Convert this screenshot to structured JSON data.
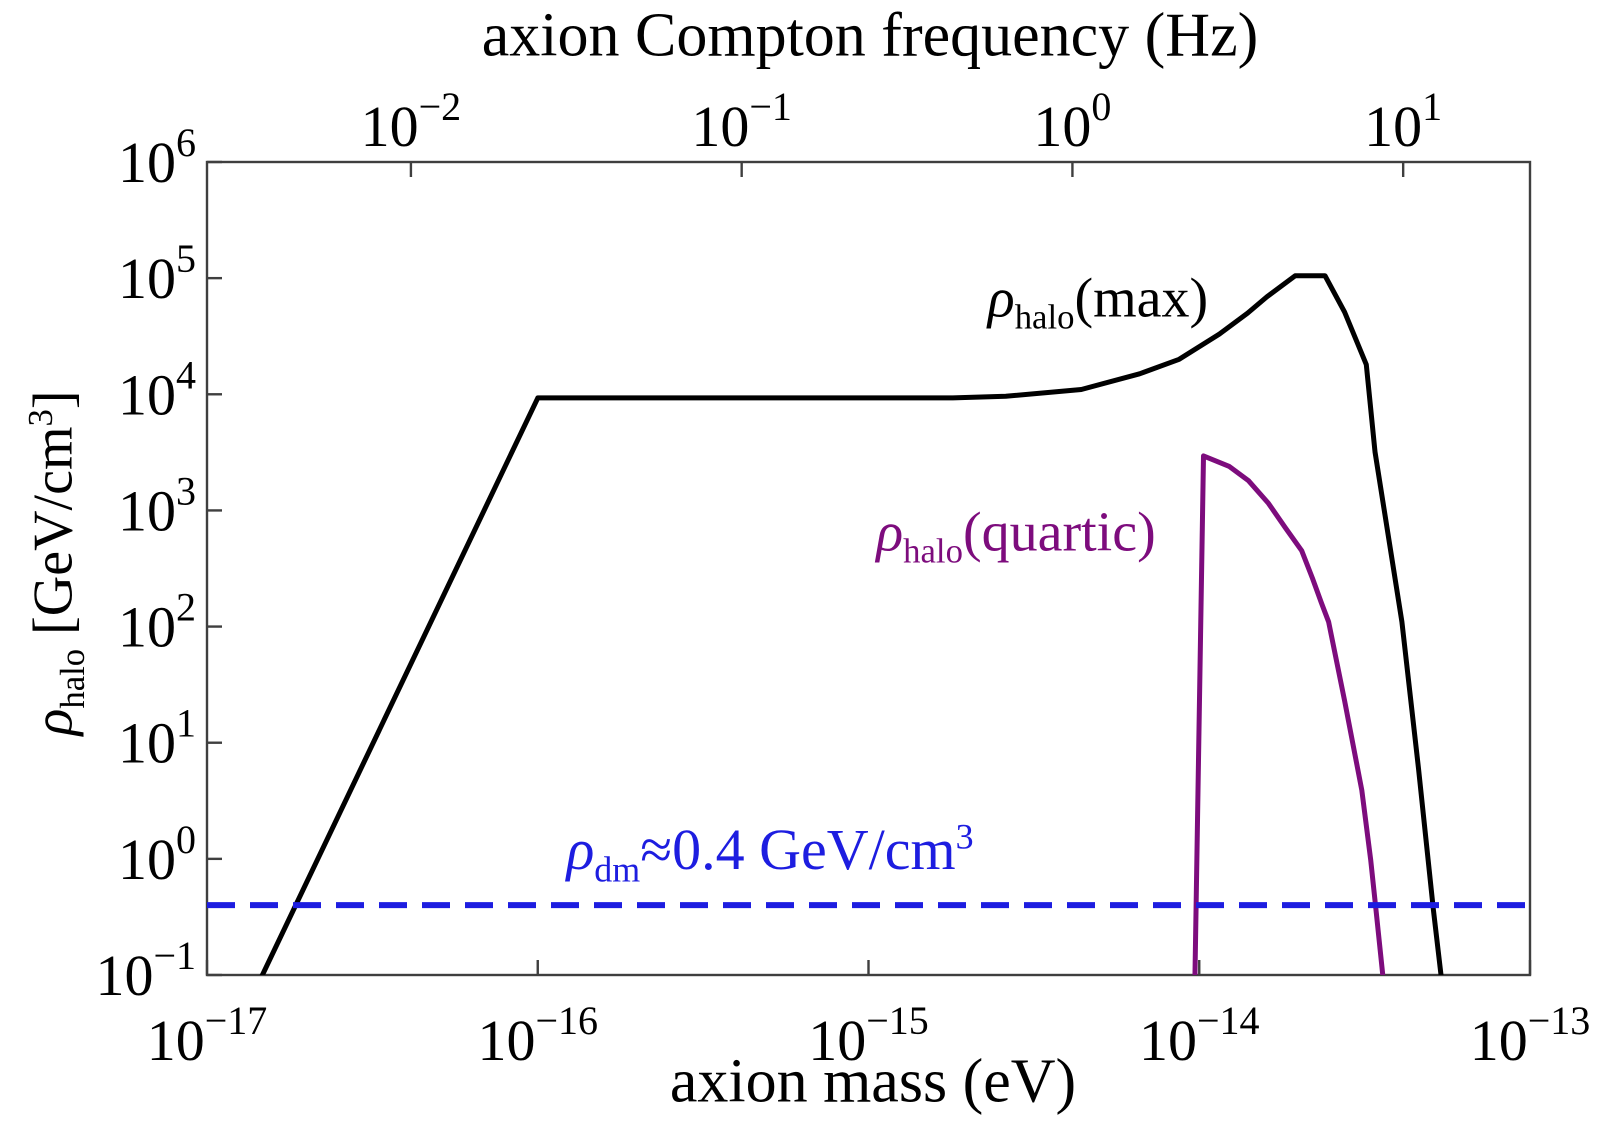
{
  "axes": {
    "top_title": "axion Compton frequency (Hz)",
    "bottom_title": "axion mass (eV)",
    "ylabel": {
      "rho": "ρ",
      "sub": "halo",
      "mid": " [GeV/cm",
      "sup": "3",
      "end": "]"
    }
  },
  "annotations": {
    "max": {
      "rho": "ρ",
      "sub": "halo",
      "rest": "(max)"
    },
    "quartic": {
      "rho": "ρ",
      "sub": "halo",
      "rest": "(quartic)"
    },
    "dm": {
      "rho": "ρ",
      "sub": "dm",
      "mid": "≈0.4 GeV/cm",
      "sup": "3"
    }
  },
  "chart_data": {
    "type": "line",
    "title": "",
    "top_axis_label": "axion Compton frequency (Hz)",
    "xlabel": "axion mass (eV)",
    "ylabel": "rho_halo [GeV/cm^3]",
    "x_scale": "log",
    "y_scale": "log",
    "xlim": [
      1e-17,
      1e-13
    ],
    "ylim": [
      0.1,
      1000000
    ],
    "grid": false,
    "legend": "none (inline curve labels)",
    "compton_conversion_hz_per_ev": 241800000000000.0,
    "frame_color": "#3f3f3f",
    "x_ticks": [
      {
        "value": 1e-17,
        "base": "10",
        "exp": "−17"
      },
      {
        "value": 1e-16,
        "base": "10",
        "exp": "−16"
      },
      {
        "value": 1e-15,
        "base": "10",
        "exp": "−15"
      },
      {
        "value": 1e-14,
        "base": "10",
        "exp": "−14"
      },
      {
        "value": 1e-13,
        "base": "10",
        "exp": "−13"
      }
    ],
    "y_ticks": [
      {
        "value": 1000000,
        "base": "10",
        "exp": "6"
      },
      {
        "value": 100000,
        "base": "10",
        "exp": "5"
      },
      {
        "value": 10000,
        "base": "10",
        "exp": "4"
      },
      {
        "value": 1000,
        "base": "10",
        "exp": "3"
      },
      {
        "value": 100,
        "base": "10",
        "exp": "2"
      },
      {
        "value": 10,
        "base": "10",
        "exp": "1"
      },
      {
        "value": 1,
        "base": "10",
        "exp": "0"
      },
      {
        "value": 0.1,
        "base": "10",
        "exp": "−1"
      }
    ],
    "top_ticks": [
      {
        "value_hz": 0.01,
        "base": "10",
        "exp": "−2"
      },
      {
        "value_hz": 0.1,
        "base": "10",
        "exp": "−1"
      },
      {
        "value_hz": 1,
        "base": "10",
        "exp": "0"
      },
      {
        "value_hz": 10,
        "base": "10",
        "exp": "1"
      }
    ],
    "series": [
      {
        "name": "rho_halo(max)",
        "color": "#000000",
        "stroke_width": 5,
        "points": [
          [
            1.45e-17,
            0.092
          ],
          [
            1e-16,
            9300
          ],
          [
            1.8e-15,
            9300
          ],
          [
            2.6e-15,
            9600
          ],
          [
            4.4e-15,
            11000
          ],
          [
            6.6e-15,
            15000
          ],
          [
            8.7e-15,
            20000
          ],
          [
            1.15e-14,
            33000
          ],
          [
            1.4e-14,
            50000
          ],
          [
            1.6e-14,
            69000
          ],
          [
            1.95e-14,
            105000
          ],
          [
            2.4e-14,
            105000
          ],
          [
            2.75e-14,
            51000
          ],
          [
            3.2e-14,
            18000
          ],
          [
            3.4e-14,
            3200
          ],
          [
            4.1e-14,
            110
          ],
          [
            4.6e-14,
            6
          ],
          [
            5.1e-14,
            0.37
          ],
          [
            5.4e-14,
            0.092
          ]
        ]
      },
      {
        "name": "rho_halo(quartic)",
        "color": "#7d0c7d",
        "stroke_width": 5,
        "points": [
          [
            9.7e-15,
            0.092
          ],
          [
            1.03e-14,
            2950
          ],
          [
            1.23e-14,
            2400
          ],
          [
            1.41e-14,
            1800
          ],
          [
            1.62e-14,
            1150
          ],
          [
            1.82e-14,
            710
          ],
          [
            2.04e-14,
            450
          ],
          [
            2.2e-14,
            260
          ],
          [
            2.34e-14,
            160
          ],
          [
            2.46e-14,
            110
          ],
          [
            2.75e-14,
            23
          ],
          [
            3.1e-14,
            3.9
          ],
          [
            3.3e-14,
            0.98
          ],
          [
            3.42e-14,
            0.37
          ],
          [
            3.6e-14,
            0.092
          ]
        ]
      },
      {
        "name": "rho_dm",
        "type": "hline",
        "value": 0.4,
        "color": "#1d1de0",
        "stroke_width": 6,
        "dash": [
          28,
          15
        ]
      }
    ]
  }
}
